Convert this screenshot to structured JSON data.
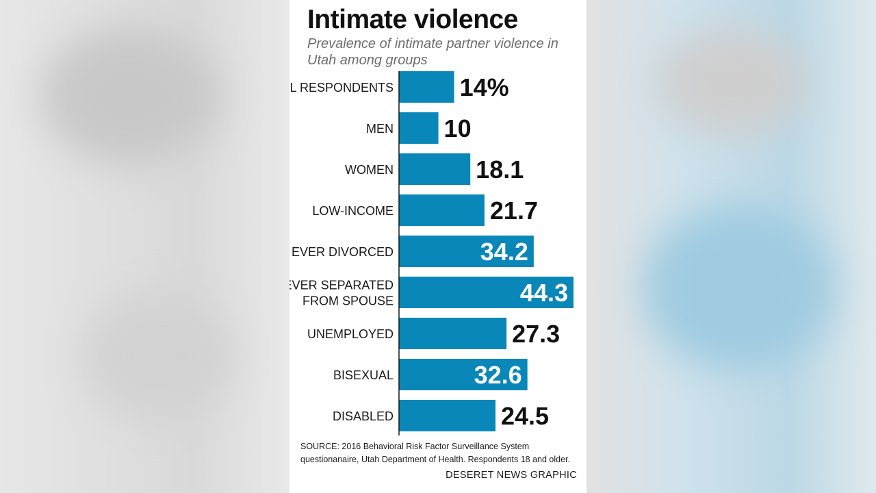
{
  "colors": {
    "bar": "#0a87b9",
    "value_dark": "#111111",
    "value_light": "#ffffff",
    "axis": "#1a1a1a"
  },
  "chart_data": {
    "type": "bar",
    "orientation": "horizontal",
    "title": "Intimate violence",
    "subtitle": "Prevalence of intimate partner violence in Utah among groups",
    "categories": [
      "ALL RESPONDENTS",
      "MEN",
      "WOMEN",
      "LOW-INCOME",
      "EVER DIVORCED",
      "EVER SEPARATED FROM SPOUSE",
      "UNEMPLOYED",
      "BISEXUAL",
      "DISABLED"
    ],
    "category_lines": [
      [
        "ALL RESPONDENTS"
      ],
      [
        "MEN"
      ],
      [
        "WOMEN"
      ],
      [
        "LOW-INCOME"
      ],
      [
        "EVER DIVORCED"
      ],
      [
        "EVER SEPARATED",
        "FROM SPOUSE"
      ],
      [
        "UNEMPLOYED"
      ],
      [
        "BISEXUAL"
      ],
      [
        "DISABLED"
      ]
    ],
    "values": [
      14,
      10,
      18.1,
      21.7,
      34.2,
      44.3,
      27.3,
      32.6,
      24.5
    ],
    "value_labels": [
      "14%",
      "10",
      "18.1",
      "21.7",
      "34.2",
      "44.3",
      "27.3",
      "32.6",
      "24.5"
    ],
    "label_inside": [
      false,
      false,
      false,
      false,
      true,
      true,
      false,
      true,
      false
    ],
    "xlim": [
      0,
      44.3
    ],
    "grid": false,
    "legend": "none"
  },
  "source": "SOURCE: 2016 Behavioral Risk Factor Surveillance System questionanaire, Utah Department of Health. Respondents 18 and older.",
  "credit": "DESERET NEWS GRAPHIC"
}
